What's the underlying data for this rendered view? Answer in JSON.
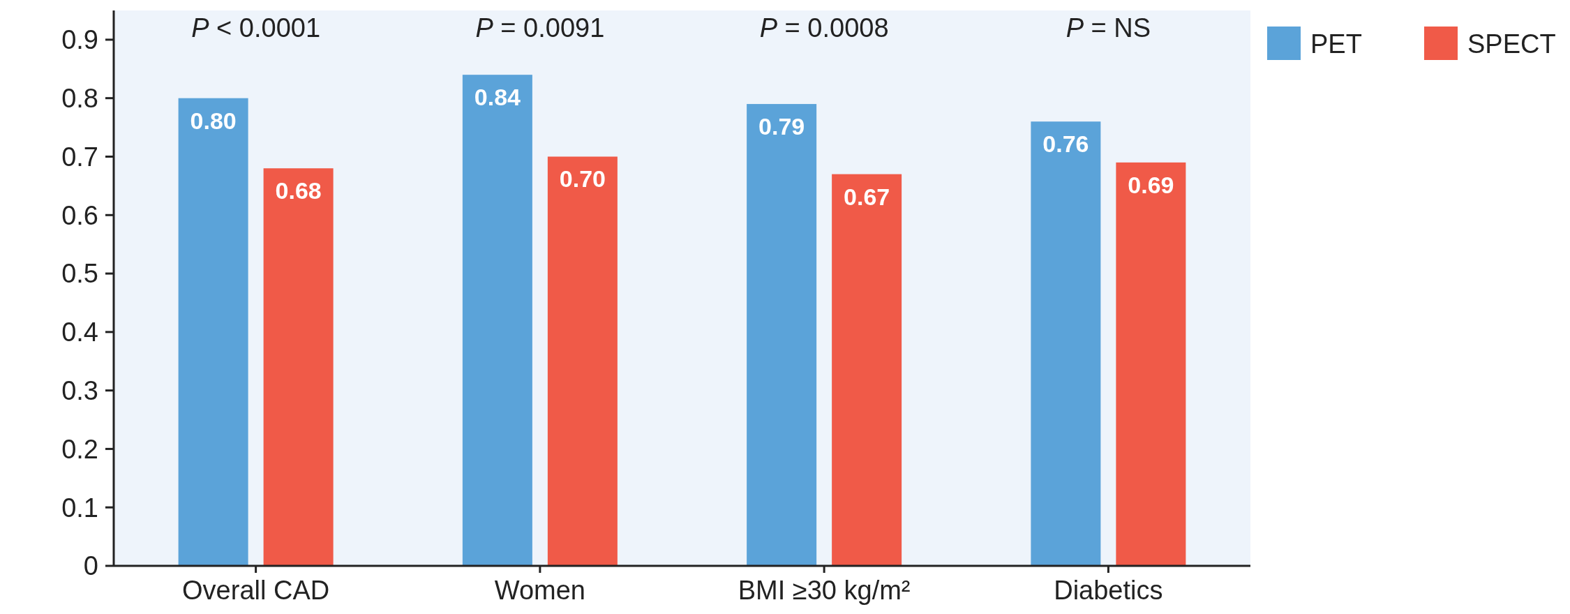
{
  "chart_data": {
    "type": "bar",
    "categories": [
      "Overall CAD",
      "Women",
      "BMI ≥30 kg/m²",
      "Diabetics"
    ],
    "series": [
      {
        "name": "PET",
        "color": "#5ba3d9",
        "values": [
          0.8,
          0.84,
          0.79,
          0.76
        ],
        "value_labels": [
          "0.80",
          "0.84",
          "0.79",
          "0.76"
        ]
      },
      {
        "name": "SPECT",
        "color": "#f05a48",
        "values": [
          0.68,
          0.7,
          0.67,
          0.69
        ],
        "value_labels": [
          "0.68",
          "0.70",
          "0.67",
          "0.69"
        ]
      }
    ],
    "ylim": [
      0,
      0.95
    ],
    "yticks": [
      0,
      0.1,
      0.2,
      0.3,
      0.4,
      0.5,
      0.6,
      0.7,
      0.8,
      0.9
    ],
    "legend": "top right",
    "grid": false,
    "annotations": [
      "P < 0.0001",
      "P = 0.0091",
      "P = 0.0008",
      "P = NS"
    ]
  }
}
